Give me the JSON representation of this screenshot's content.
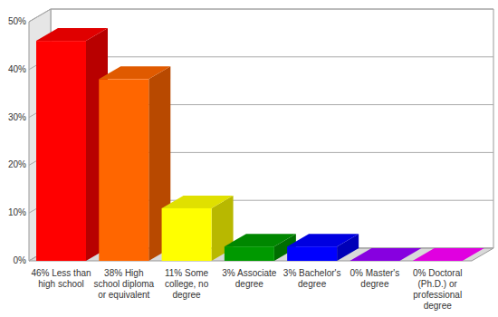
{
  "chart_data": {
    "type": "bar",
    "categories": [
      "46% Less than high school",
      "38% High school diploma or equivalent",
      "11% Some college, no degree",
      "3% Associate degree",
      "3% Bachelor's degree",
      "0% Master's degree",
      "0% Doctoral (Ph.D.) or professional degree"
    ],
    "values": [
      46,
      38,
      11,
      3,
      3,
      0,
      0
    ],
    "colors": [
      "#ff0000",
      "#ff6600",
      "#ffff00",
      "#009900",
      "#0000ff",
      "#9900ff",
      "#ff00ff"
    ],
    "ylim": [
      0,
      50
    ],
    "yticks": [
      {
        "value": 0,
        "label": "0%"
      },
      {
        "value": 10,
        "label": "10%"
      },
      {
        "value": 20,
        "label": "20%"
      },
      {
        "value": 30,
        "label": "30%"
      },
      {
        "value": 40,
        "label": "40%"
      },
      {
        "value": 50,
        "label": "50%"
      }
    ],
    "grid": true
  }
}
